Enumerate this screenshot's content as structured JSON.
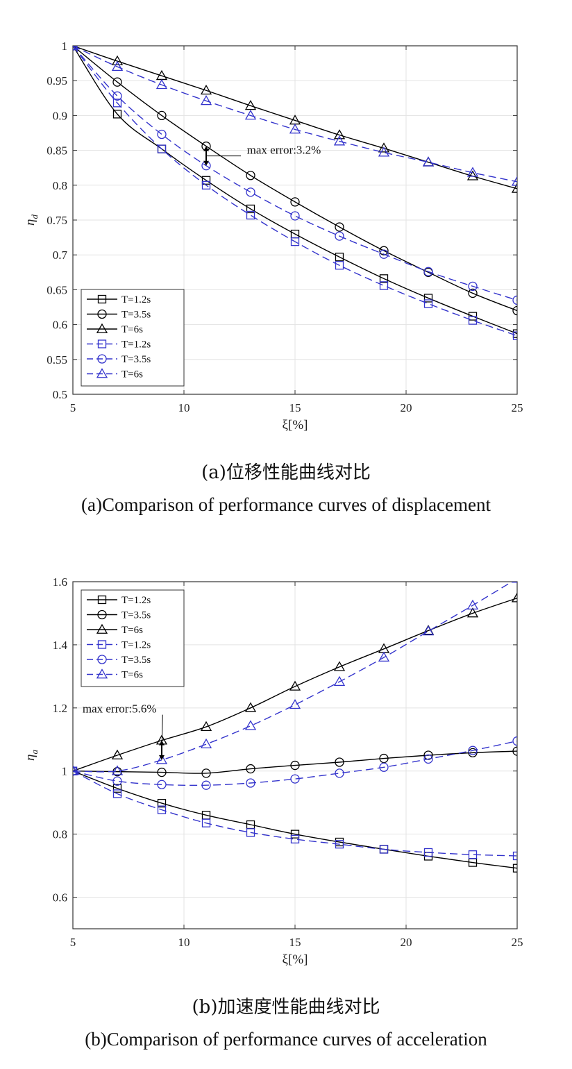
{
  "chart_data": [
    {
      "type": "line",
      "x": [
        5,
        7,
        9,
        11,
        13,
        15,
        17,
        19,
        21,
        23,
        25
      ],
      "xlim": [
        5,
        25
      ],
      "ylim": [
        0.5,
        1.0
      ],
      "xticks": [
        5,
        10,
        15,
        20,
        25
      ],
      "yticks": [
        0.5,
        0.55,
        0.6,
        0.65,
        0.7,
        0.75,
        0.8,
        0.85,
        0.9,
        0.95,
        1.0
      ],
      "ytick_labels": [
        "0.5",
        "0.55",
        "0.6",
        "0.65",
        "0.7",
        "0.75",
        "0.8",
        "0.85",
        "0.9",
        "0.95",
        "1"
      ],
      "xlabel": "ξ[%]",
      "ylabel": "η",
      "ylabel_sub": "d",
      "grid": true,
      "legend_position": "bottom-left",
      "series": [
        {
          "name": "T=1.2s",
          "marker": "square",
          "color": "#000000",
          "dash": "solid",
          "values": [
            1.0,
            0.902,
            0.852,
            0.807,
            0.766,
            0.73,
            0.697,
            0.666,
            0.638,
            0.612,
            0.587
          ]
        },
        {
          "name": "T=3.5s",
          "marker": "circle",
          "color": "#000000",
          "dash": "solid",
          "values": [
            1.0,
            0.948,
            0.9,
            0.856,
            0.814,
            0.776,
            0.74,
            0.706,
            0.675,
            0.645,
            0.62
          ]
        },
        {
          "name": "T=6s",
          "marker": "triangle",
          "color": "#000000",
          "dash": "solid",
          "values": [
            1.0,
            0.978,
            0.957,
            0.936,
            0.914,
            0.893,
            0.872,
            0.853,
            0.833,
            0.813,
            0.795
          ]
        },
        {
          "name": "T=1.2s",
          "marker": "square",
          "color": "#3333cc",
          "dash": "dashed",
          "values": [
            1.0,
            0.918,
            0.852,
            0.8,
            0.757,
            0.719,
            0.685,
            0.656,
            0.63,
            0.606,
            0.584
          ]
        },
        {
          "name": "T=3.5s",
          "marker": "circle",
          "color": "#3333cc",
          "dash": "dashed",
          "values": [
            1.0,
            0.928,
            0.873,
            0.828,
            0.79,
            0.756,
            0.727,
            0.701,
            0.676,
            0.655,
            0.635
          ]
        },
        {
          "name": "T=6s",
          "marker": "triangle",
          "color": "#3333cc",
          "dash": "dashed",
          "values": [
            1.0,
            0.97,
            0.944,
            0.921,
            0.9,
            0.88,
            0.863,
            0.847,
            0.833,
            0.818,
            0.805
          ]
        }
      ],
      "annotation": {
        "text": "max error:3.2%",
        "x": 11,
        "y_top": 0.856,
        "y_bottom": 0.828,
        "text_x": 14.5,
        "text_y": 0.845
      }
    },
    {
      "type": "line",
      "x": [
        5,
        7,
        9,
        11,
        13,
        15,
        17,
        19,
        21,
        23,
        25
      ],
      "xlim": [
        5,
        25
      ],
      "ylim": [
        0.5,
        1.6
      ],
      "xticks": [
        5,
        10,
        15,
        20,
        25
      ],
      "yticks": [
        0.6,
        0.8,
        1.0,
        1.2,
        1.4,
        1.6
      ],
      "ytick_labels": [
        "0.6",
        "0.8",
        "1",
        "1.2",
        "1.4",
        "1.6"
      ],
      "xlabel": "ξ[%]",
      "ylabel": "η",
      "ylabel_sub": "a",
      "grid": true,
      "legend_position": "top-left",
      "series": [
        {
          "name": "T=1.2s",
          "marker": "square",
          "color": "#000000",
          "dash": "solid",
          "values": [
            1.0,
            0.945,
            0.898,
            0.86,
            0.83,
            0.8,
            0.775,
            0.752,
            0.73,
            0.71,
            0.692
          ]
        },
        {
          "name": "T=3.5s",
          "marker": "circle",
          "color": "#000000",
          "dash": "solid",
          "values": [
            1.0,
            0.998,
            0.996,
            0.993,
            1.007,
            1.018,
            1.028,
            1.04,
            1.05,
            1.058,
            1.063
          ]
        },
        {
          "name": "T=6s",
          "marker": "triangle",
          "color": "#000000",
          "dash": "solid",
          "values": [
            1.0,
            1.05,
            1.097,
            1.14,
            1.2,
            1.268,
            1.33,
            1.387,
            1.445,
            1.5,
            1.548
          ]
        },
        {
          "name": "T=1.2s",
          "marker": "square",
          "color": "#3333cc",
          "dash": "dashed",
          "values": [
            1.0,
            0.928,
            0.877,
            0.835,
            0.805,
            0.784,
            0.768,
            0.752,
            0.742,
            0.735,
            0.731
          ]
        },
        {
          "name": "T=3.5s",
          "marker": "circle",
          "color": "#3333cc",
          "dash": "dashed",
          "values": [
            1.0,
            0.968,
            0.957,
            0.955,
            0.962,
            0.975,
            0.993,
            1.012,
            1.038,
            1.065,
            1.095
          ]
        },
        {
          "name": "T=6s",
          "marker": "triangle",
          "color": "#3333cc",
          "dash": "dashed",
          "values": [
            1.0,
            1.0,
            1.035,
            1.085,
            1.143,
            1.21,
            1.283,
            1.36,
            1.443,
            1.525,
            1.61
          ]
        }
      ],
      "annotation": {
        "text": "max error:5.6%",
        "x": 9,
        "y_top": 1.097,
        "y_bottom": 1.035,
        "text_x": 7.1,
        "text_y": 1.185
      }
    }
  ],
  "captions": {
    "a_cn": "(a)位移性能曲线对比",
    "a_en": "(a)Comparison of performance curves of displacement",
    "b_cn": "(b)加速度性能曲线对比",
    "b_en": "(b)Comparison of performance curves of acceleration"
  }
}
